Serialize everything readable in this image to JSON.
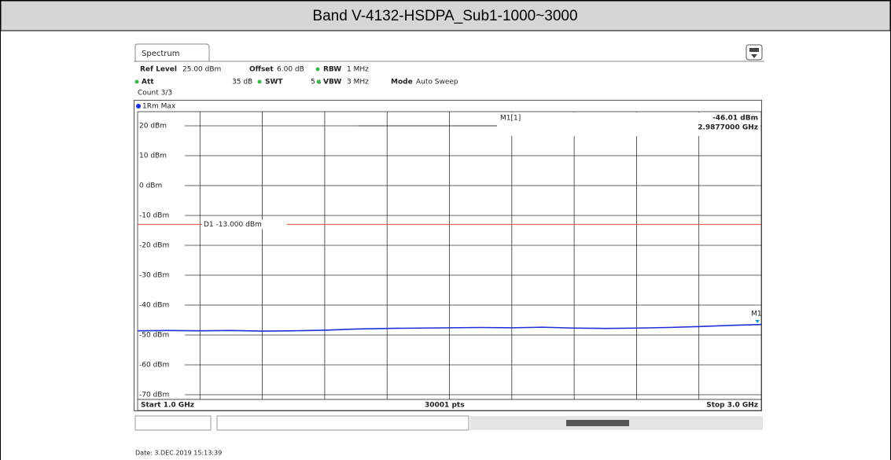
{
  "header": {
    "title": "Band V-4132-HSDPA_Sub1-1000~3000"
  },
  "spectrum": {
    "tab": "Spectrum",
    "settings": [
      {
        "label": "Ref Level",
        "value": "25.00 dBm"
      },
      {
        "label": "Offset",
        "value": "6.00 dB"
      },
      {
        "label": "RBW",
        "value": "1 MHz"
      },
      {
        "label": "Att",
        "value": "35 dB"
      },
      {
        "label": "SWT",
        "value": "5 s"
      },
      {
        "label": "VBW",
        "value": "3 MHz"
      },
      {
        "label": "Mode",
        "value": "Auto Sweep"
      }
    ],
    "count": "Count 3/3",
    "trace_label": "1Rm Max",
    "start": "Start 1.0 GHz",
    "points": "30001 pts",
    "stop": "Stop 3.0 GHz",
    "date": "Date: 3.DEC.2019  15:13:39"
  },
  "chart_data": {
    "type": "line",
    "xlim": [
      1.0,
      3.0
    ],
    "ylim": [
      -75,
      25
    ],
    "yticks": [
      {
        "value": 20,
        "label": "20 dBm"
      },
      {
        "value": 10,
        "label": "10 dBm"
      },
      {
        "value": 0,
        "label": "0 dBm"
      },
      {
        "value": -10,
        "label": "-10 dBm"
      },
      {
        "value": -20,
        "label": "-20 dBm"
      },
      {
        "value": -30,
        "label": "-30 dBm"
      },
      {
        "value": -40,
        "label": "-40 dBm"
      },
      {
        "value": -50,
        "label": "-50 dBm"
      },
      {
        "value": -60,
        "label": "-60 dBm"
      },
      {
        "value": -70,
        "label": "-70 dBm"
      }
    ],
    "grid": true,
    "x": [
      1.0,
      1.1,
      1.2,
      1.3,
      1.4,
      1.5,
      1.6,
      1.7,
      1.8,
      1.9,
      2.0,
      2.1,
      2.2,
      2.3,
      2.4,
      2.5,
      2.6,
      2.7,
      2.8,
      2.9,
      3.0
    ],
    "series": [
      {
        "name": "1Rm Max",
        "color": "#1f2fd6",
        "values": [
          -48.6,
          -48.5,
          -48.6,
          -48.5,
          -48.7,
          -48.6,
          -48.4,
          -48.0,
          -47.8,
          -47.7,
          -47.6,
          -47.5,
          -47.6,
          -47.4,
          -47.7,
          -47.8,
          -47.7,
          -47.5,
          -47.2,
          -46.8,
          -46.5
        ]
      }
    ],
    "display_line": {
      "value": -13,
      "label": "D1 -13.000 dBm",
      "color": "#e84a3a"
    },
    "marker": {
      "name": "M1",
      "readout": "M1[1]",
      "x": 2.9877,
      "y": -46.01,
      "y_label": "-46.01 dBm",
      "x_label": "2.9877000 GHz",
      "color": "#1a8ad0"
    }
  }
}
